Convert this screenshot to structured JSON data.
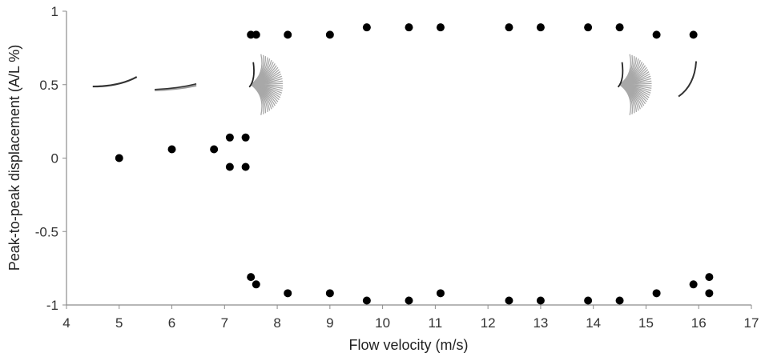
{
  "chart_data": {
    "type": "scatter",
    "title": "",
    "xlabel": "Flow velocity  (m/s)",
    "ylabel": "Peak-to-peak   displacement  (A/L %)",
    "xlim": [
      4,
      17
    ],
    "ylim": [
      -1,
      1
    ],
    "xticks": [
      "4",
      "5",
      "6",
      "7",
      "8",
      "9",
      "10",
      "11",
      "12",
      "13",
      "14",
      "15",
      "16",
      "17"
    ],
    "yticks": [
      "-1",
      "-0.5",
      "0",
      "0.5",
      "1"
    ],
    "grid": false,
    "marker_color": "#000000",
    "series": [
      {
        "points": [
          [
            5.0,
            0.0
          ],
          [
            6.0,
            0.06
          ],
          [
            6.8,
            0.06
          ],
          [
            7.1,
            0.14
          ],
          [
            7.1,
            -0.06
          ],
          [
            7.4,
            0.14
          ],
          [
            7.4,
            -0.06
          ],
          [
            7.5,
            0.84
          ],
          [
            7.6,
            0.84
          ],
          [
            8.2,
            0.84
          ],
          [
            9.0,
            0.84
          ],
          [
            9.7,
            0.89
          ],
          [
            10.5,
            0.89
          ],
          [
            11.1,
            0.89
          ],
          [
            12.4,
            0.89
          ],
          [
            13.0,
            0.89
          ],
          [
            13.9,
            0.89
          ],
          [
            14.5,
            0.89
          ],
          [
            15.2,
            0.84
          ],
          [
            15.9,
            0.84
          ],
          [
            7.5,
            -0.81
          ],
          [
            7.6,
            -0.86
          ],
          [
            8.2,
            -0.92
          ],
          [
            9.0,
            -0.92
          ],
          [
            9.7,
            -0.97
          ],
          [
            10.5,
            -0.97
          ],
          [
            11.1,
            -0.92
          ],
          [
            12.4,
            -0.97
          ],
          [
            13.0,
            -0.97
          ],
          [
            13.9,
            -0.97
          ],
          [
            14.5,
            -0.97
          ],
          [
            15.2,
            -0.92
          ],
          [
            15.9,
            -0.86
          ],
          [
            16.2,
            -0.81
          ],
          [
            16.2,
            -0.92
          ]
        ]
      }
    ]
  },
  "insets": [
    {
      "name": "inset-deformation-low-velocity",
      "x": 5.0,
      "y": 0.52
    },
    {
      "name": "inset-deformation-6",
      "x": 6.1,
      "y": 0.5
    },
    {
      "name": "inset-flutter-fan-7-5",
      "x": 7.5,
      "y": 0.5
    },
    {
      "name": "inset-flutter-fan-14-5",
      "x": 14.5,
      "y": 0.5
    },
    {
      "name": "inset-deformation-high-velocity",
      "x": 15.8,
      "y": 0.55
    }
  ]
}
